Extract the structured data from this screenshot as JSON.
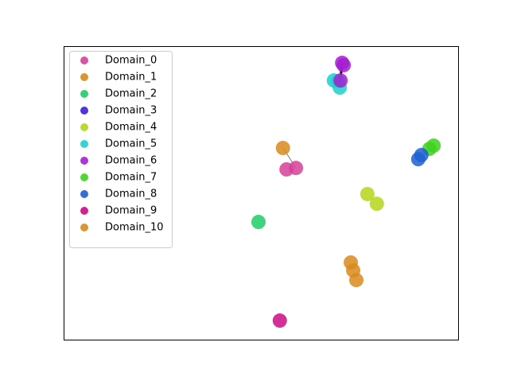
{
  "chart_data": {
    "type": "scatter",
    "xlim": [
      0,
      100
    ],
    "ylim": [
      0,
      100
    ],
    "legend": "upper left",
    "series": [
      {
        "name": "Domain_0",
        "color": "#d63f97",
        "x": [
          58.9,
          56.5
        ],
        "y": [
          58.5,
          58.0
        ]
      },
      {
        "name": "Domain_1",
        "color": "#d9891b",
        "x": [
          72.8,
          73.4,
          74.2
        ],
        "y": [
          26.3,
          23.6,
          20.3
        ]
      },
      {
        "name": "Domain_2",
        "color": "#1fcc6b",
        "x": [
          49.4
        ],
        "y": [
          40.1
        ]
      },
      {
        "name": "Domain_3",
        "color": "#3b1fd9",
        "x": [],
        "y": []
      },
      {
        "name": "Domain_4",
        "color": "#b3d61a",
        "x": [
          77.0,
          79.4
        ],
        "y": [
          49.6,
          46.3
        ]
      },
      {
        "name": "Domain_5",
        "color": "#1fcfcf",
        "x": [
          69.6,
          70.0,
          68.5
        ],
        "y": [
          88.1,
          85.9,
          88.3
        ]
      },
      {
        "name": "Domain_6",
        "color": "#a51fd1",
        "x": [
          70.6,
          71.0,
          70.2
        ],
        "y": [
          94.3,
          93.5,
          88.3
        ]
      },
      {
        "name": "Domain_7",
        "color": "#3dd11f",
        "x": [
          93.8,
          92.7
        ],
        "y": [
          66.1,
          65.0
        ]
      },
      {
        "name": "Domain_8",
        "color": "#1f5fd1",
        "x": [
          89.9,
          90.7
        ],
        "y": [
          61.5,
          62.9
        ]
      },
      {
        "name": "Domain_9",
        "color": "#cc0a86",
        "x": [
          54.8
        ],
        "y": [
          6.5
        ]
      },
      {
        "name": "Domain_10",
        "color": "#d98a1b",
        "x": [
          55.6
        ],
        "y": [
          65.3
        ]
      }
    ]
  }
}
